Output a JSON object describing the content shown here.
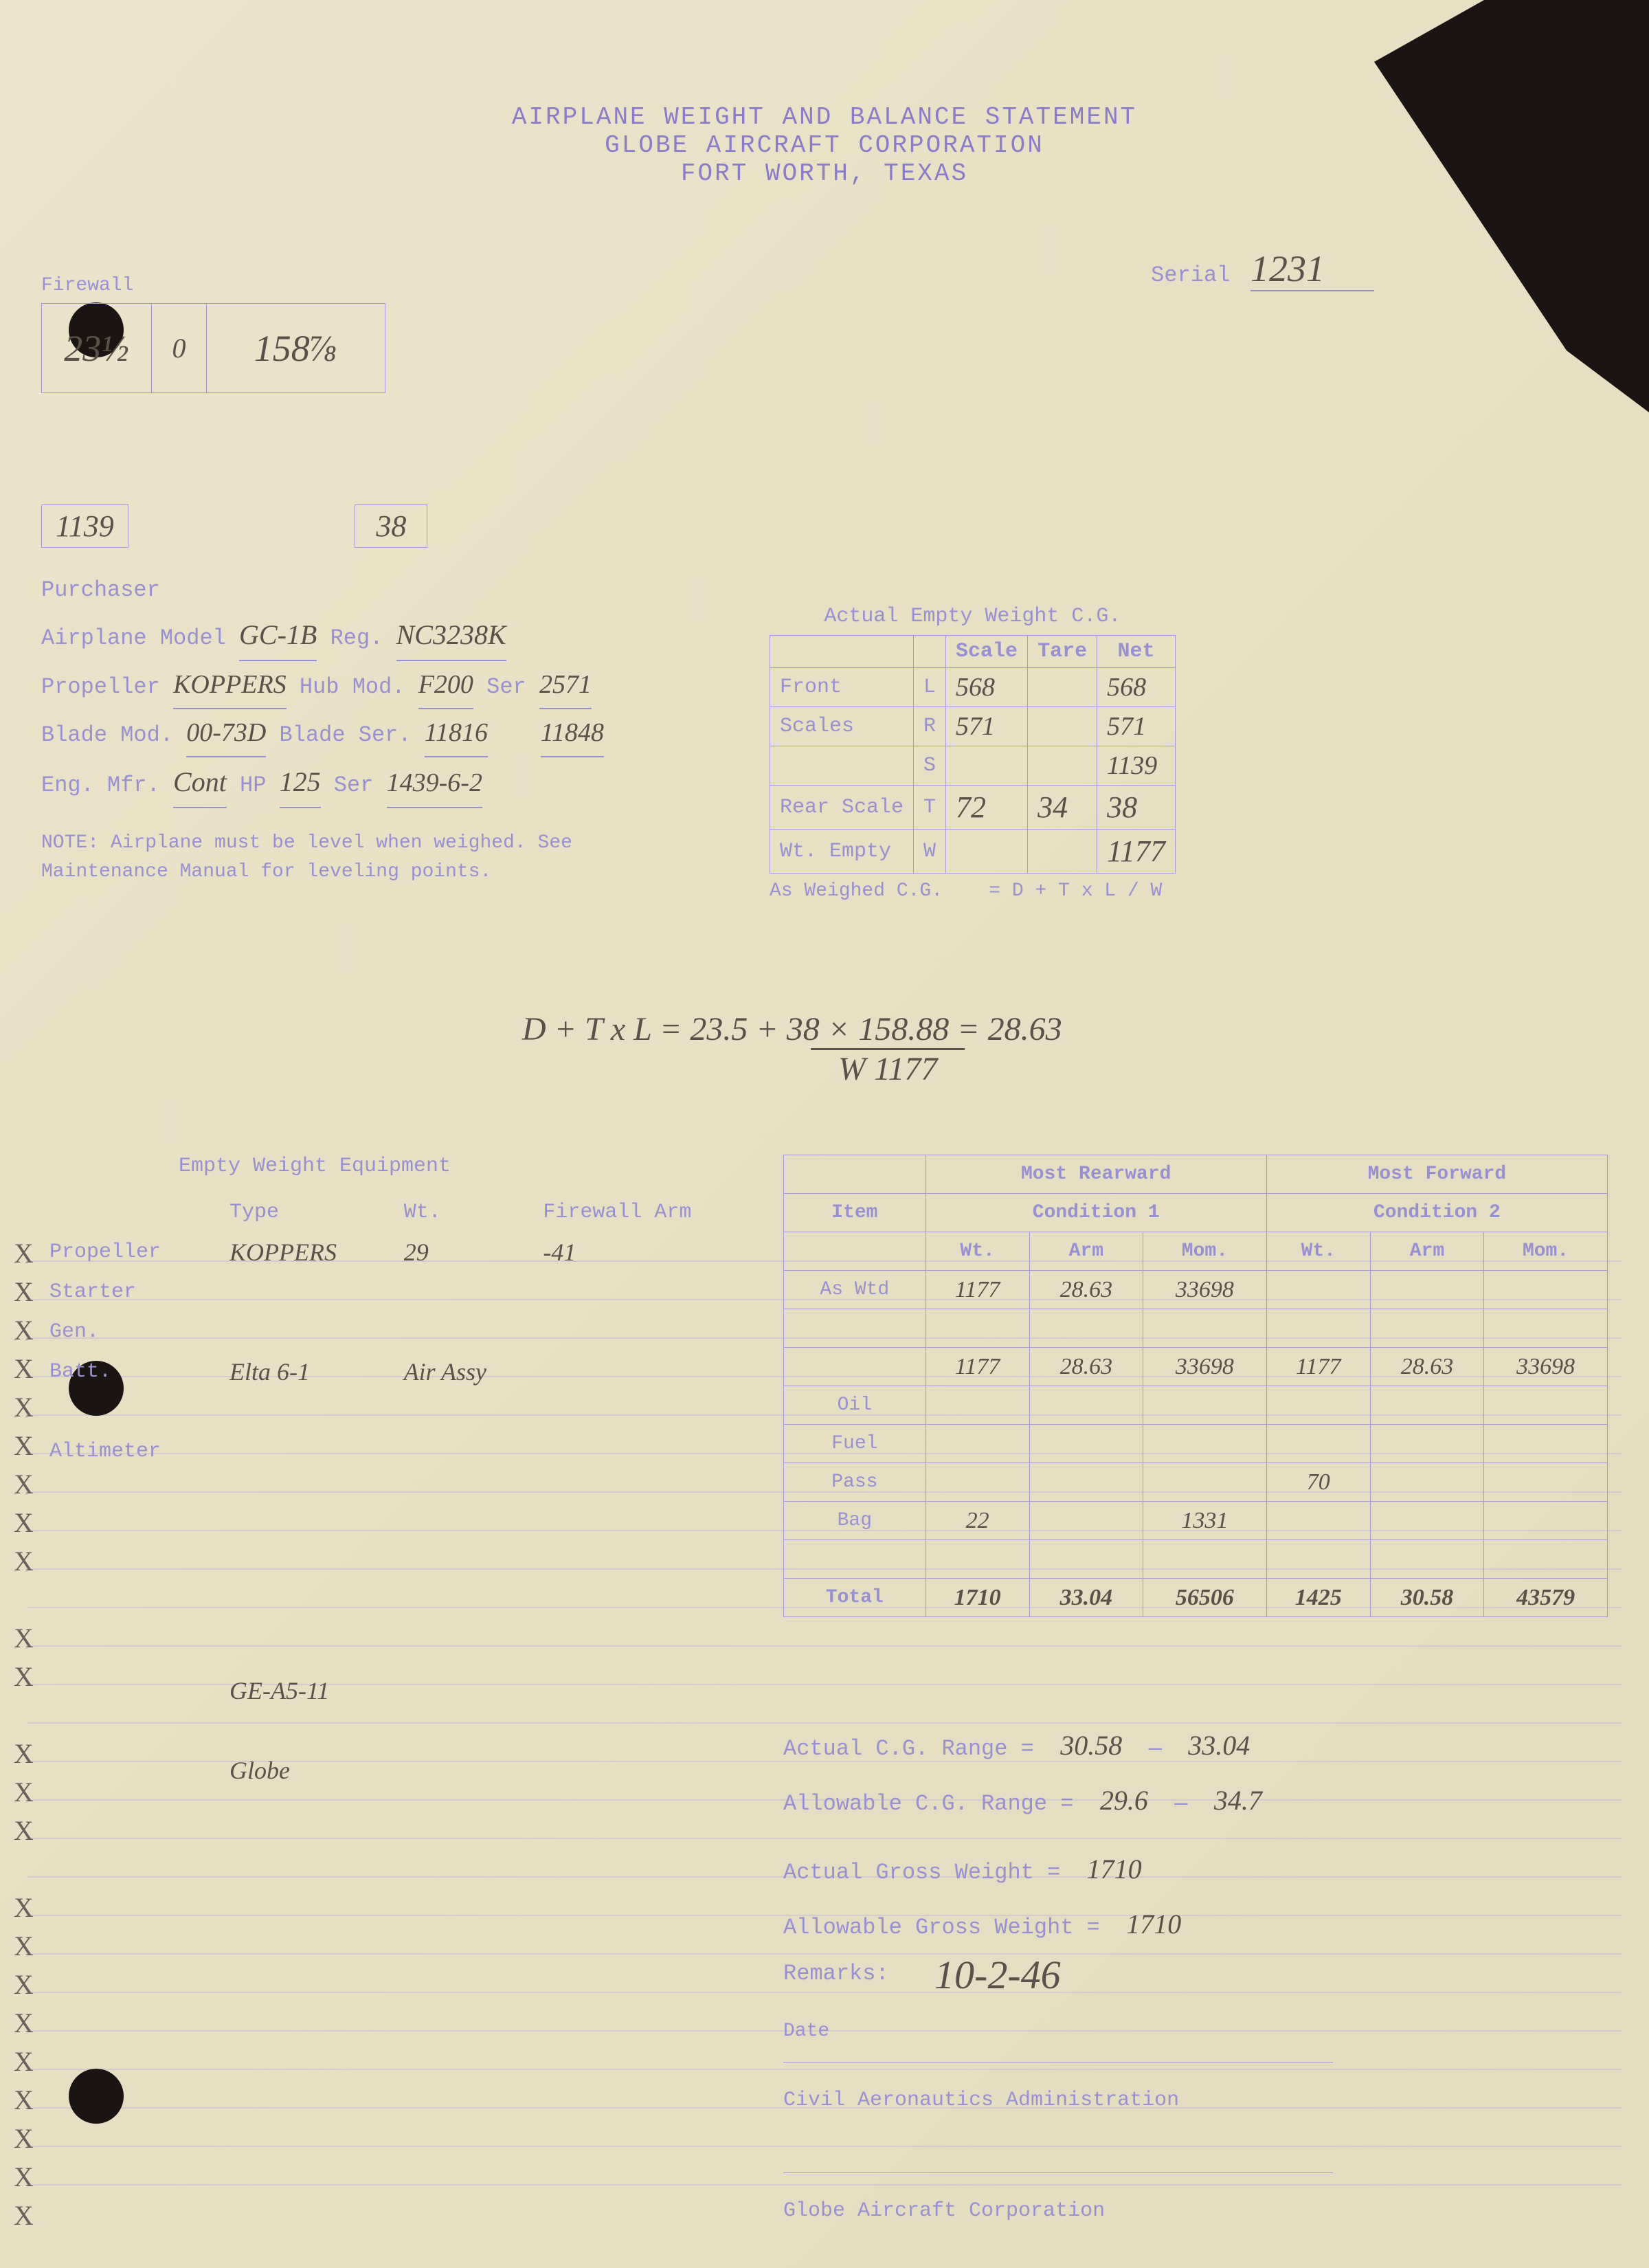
{
  "header": {
    "line1": "AIRPLANE WEIGHT AND BALANCE STATEMENT",
    "line2": "GLOBE AIRCRAFT CORPORATION",
    "line3": "FORT WORTH, TEXAS"
  },
  "serial": {
    "label": "Serial",
    "value": "1231"
  },
  "firewall": {
    "label": "Firewall",
    "v1": "23½",
    "v2": "0",
    "v3": "158⅞"
  },
  "mid": {
    "v1": "1139",
    "v2": "38"
  },
  "info": {
    "purchaser_label": "Purchaser",
    "model_label": "Airplane Model",
    "model": "GC-1B",
    "reg_label": "Reg.",
    "reg": "NC3238K",
    "prop_label": "Propeller",
    "prop": "KOPPERS",
    "hub_label": "Hub Mod.",
    "hub": "F200",
    "hub_ser_label": "Ser",
    "hub_ser": "2571",
    "blade_label": "Blade Mod.",
    "blade": "00-73D",
    "blade_ser_label": "Blade Ser.",
    "blade_ser": "11816",
    "blade_other": "11848",
    "eng_label": "Eng. Mfr.",
    "eng": "Cont",
    "hp_label": "HP",
    "hp": "125",
    "eng_ser_label": "Ser",
    "eng_ser": "1439-6-2",
    "note": "NOTE: Airplane must be level when weighed. See Maintenance Manual for leveling points."
  },
  "cg": {
    "title": "Actual Empty Weight C.G.",
    "cols": [
      "",
      "",
      "Scale",
      "Tare",
      "Net"
    ],
    "rows": [
      [
        "Front",
        "L",
        "568",
        "",
        "568"
      ],
      [
        "Scales",
        "R",
        "571",
        "",
        "571"
      ],
      [
        "",
        "S",
        "",
        "",
        "1139"
      ],
      [
        "Rear Scale",
        "T",
        "72",
        "34",
        "38"
      ],
      [
        "Wt. Empty",
        "W",
        "",
        "",
        "1177"
      ]
    ],
    "as_weighed": "As Weighed C.G.",
    "formula_label": "= D + T x L / W"
  },
  "formula": {
    "expr_top": "D + T x L =  23.5 + 38 × 158.88  = 28.63",
    "expr_bot": "W                    1177"
  },
  "equip": {
    "title": "Empty Weight Equipment",
    "head": [
      "",
      "Type",
      "Wt.",
      "Firewall Arm"
    ],
    "rows": [
      [
        "Propeller",
        "KOPPERS",
        "29",
        "-41"
      ],
      [
        "Starter",
        "",
        "",
        ""
      ],
      [
        "Gen.",
        "",
        "",
        ""
      ],
      [
        "Batt.",
        "Elta 6-1",
        "Air Assy",
        ""
      ],
      [
        "",
        "",
        "",
        ""
      ],
      [
        "Altimeter",
        "",
        "",
        ""
      ],
      [
        "",
        "",
        "",
        ""
      ],
      [
        "",
        "",
        "",
        ""
      ],
      [
        "",
        "",
        "",
        ""
      ],
      [
        "",
        "",
        "",
        ""
      ],
      [
        "",
        "",
        "",
        ""
      ],
      [
        "",
        "GE-A5-11",
        "",
        ""
      ],
      [
        "",
        "",
        "",
        ""
      ],
      [
        "",
        "Globe",
        "",
        ""
      ],
      [
        "",
        "",
        "",
        ""
      ],
      [
        "",
        "",
        "",
        ""
      ],
      [
        "",
        "",
        "",
        ""
      ],
      [
        "",
        "",
        "",
        ""
      ],
      [
        "",
        "",
        "",
        ""
      ],
      [
        "",
        "",
        "",
        ""
      ],
      [
        "",
        "",
        "",
        ""
      ]
    ],
    "x_marks": [
      "X",
      "X",
      "X",
      "X",
      "X",
      "X",
      "X",
      "X",
      "X",
      "",
      "X",
      "X",
      "",
      "X",
      "X",
      "X",
      "",
      "X",
      "X",
      "X",
      "X",
      "X",
      "X",
      "X",
      "X",
      "X"
    ]
  },
  "cond": {
    "head1": [
      "Most Rearward",
      "Most Forward"
    ],
    "head2": [
      "Item",
      "Condition 1",
      "Condition 2"
    ],
    "sub": [
      "",
      "Wt.",
      "Arm",
      "Mom.",
      "Wt.",
      "Arm",
      "Mom."
    ],
    "rows": [
      [
        "As Wtd",
        "1177",
        "28.63",
        "33698",
        "",
        "",
        ""
      ],
      [
        "",
        "",
        "",
        "",
        "",
        "",
        ""
      ],
      [
        "",
        "1177",
        "28.63",
        "33698",
        "1177",
        "28.63",
        "33698"
      ],
      [
        "Oil",
        "",
        "",
        "",
        "",
        "",
        ""
      ],
      [
        "Fuel",
        "",
        "",
        "",
        "",
        "",
        ""
      ],
      [
        "Pass",
        "",
        "",
        "",
        "70",
        "",
        ""
      ],
      [
        "Bag",
        "22",
        "",
        "1331",
        "",
        "",
        ""
      ],
      [
        "",
        "",
        "",
        "",
        "",
        "",
        ""
      ],
      [
        "Total",
        "1710",
        "33.04",
        "56506",
        "1425",
        "30.58",
        "43579"
      ]
    ]
  },
  "ranges": {
    "r1_label": "Actual C.G. Range =",
    "r1_lo": "30.58",
    "r1_hi": "33.04",
    "r2_label": "Allowable C.G. Range =",
    "r2_lo": "29.6",
    "r2_hi": "34.7",
    "r3_label": "Actual Gross Weight =",
    "r3": "1710",
    "r4_label": "Allowable Gross Weight =",
    "r4": "1710",
    "remarks_label": "Remarks:"
  },
  "date": {
    "label": "Date",
    "value": "10-2-46"
  },
  "sig": {
    "line1": "Civil Aeronautics Administration",
    "line2": "Globe Aircraft Corporation"
  },
  "colors": {
    "paper": "#e8e0c4",
    "stamp": "#8a7cc8",
    "form": "#9890d0",
    "hand": "#5a5248",
    "dark": "#1a1512"
  }
}
